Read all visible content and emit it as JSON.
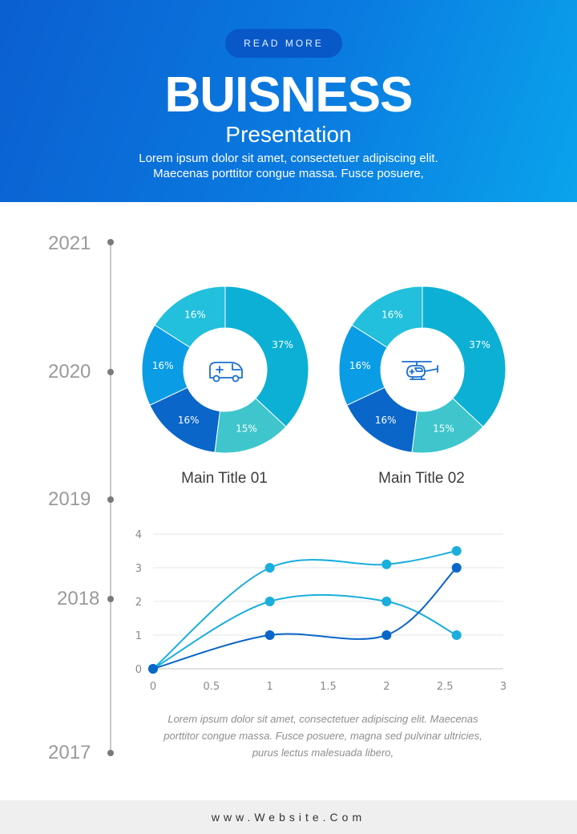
{
  "header": {
    "button_label": "READ MORE",
    "title": "BUISNESS",
    "subtitle": "Presentation",
    "desc_line1": "Lorem ipsum dolor sit amet, consectetuer adipiscing elit.",
    "desc_line2": "Maecenas porttitor congue massa. Fusce posuere,"
  },
  "timeline": {
    "years": [
      "2021",
      "2020",
      "2019",
      "2018",
      "2017"
    ]
  },
  "donuts": [
    {
      "title": "Main Title 01",
      "icon": "ambulance-icon",
      "slices": [
        {
          "label": "37%",
          "value": 37,
          "color": "#0bb0d4"
        },
        {
          "label": "15%",
          "value": 15,
          "color": "#3ec6cc"
        },
        {
          "label": "16%",
          "value": 16,
          "color": "#0a66c8"
        },
        {
          "label": "16%",
          "value": 16,
          "color": "#0a9de6"
        },
        {
          "label": "16%",
          "value": 16,
          "color": "#22c0dc"
        }
      ]
    },
    {
      "title": "Main Title 02",
      "icon": "helicopter-icon",
      "slices": [
        {
          "label": "37%",
          "value": 37,
          "color": "#0bb0d4"
        },
        {
          "label": "15%",
          "value": 15,
          "color": "#3ec6cc"
        },
        {
          "label": "16%",
          "value": 16,
          "color": "#0a66c8"
        },
        {
          "label": "16%",
          "value": 16,
          "color": "#0a9de6"
        },
        {
          "label": "16%",
          "value": 16,
          "color": "#22c0dc"
        }
      ]
    }
  ],
  "chart_data": {
    "type": "line",
    "xlim": [
      0,
      3
    ],
    "ylim": [
      0,
      4
    ],
    "x_ticks": [
      "0",
      "0.5",
      "1",
      "1.5",
      "2",
      "2.5",
      "3"
    ],
    "y_ticks": [
      "0",
      "1",
      "2",
      "3",
      "4"
    ],
    "grid": true,
    "series": [
      {
        "color": "#1aaedc",
        "x": [
          0,
          1,
          2,
          2.6
        ],
        "y": [
          0,
          3,
          3.1,
          3.5
        ]
      },
      {
        "color": "#1aaedc",
        "x": [
          0,
          1,
          2,
          2.6
        ],
        "y": [
          0,
          2,
          2,
          1
        ]
      },
      {
        "color": "#0a66c8",
        "x": [
          0,
          1,
          2,
          2.6
        ],
        "y": [
          0,
          1,
          1,
          3
        ]
      }
    ]
  },
  "caption": {
    "line1": "Lorem ipsum dolor sit amet, consectetuer adipiscing elit. Maecenas",
    "line2": "porttitor congue massa. Fusce posuere, magna sed pulvinar ultricies,",
    "line3": "purus lectus malesuada libero,"
  },
  "footer": {
    "website": "www.Website.Com"
  }
}
